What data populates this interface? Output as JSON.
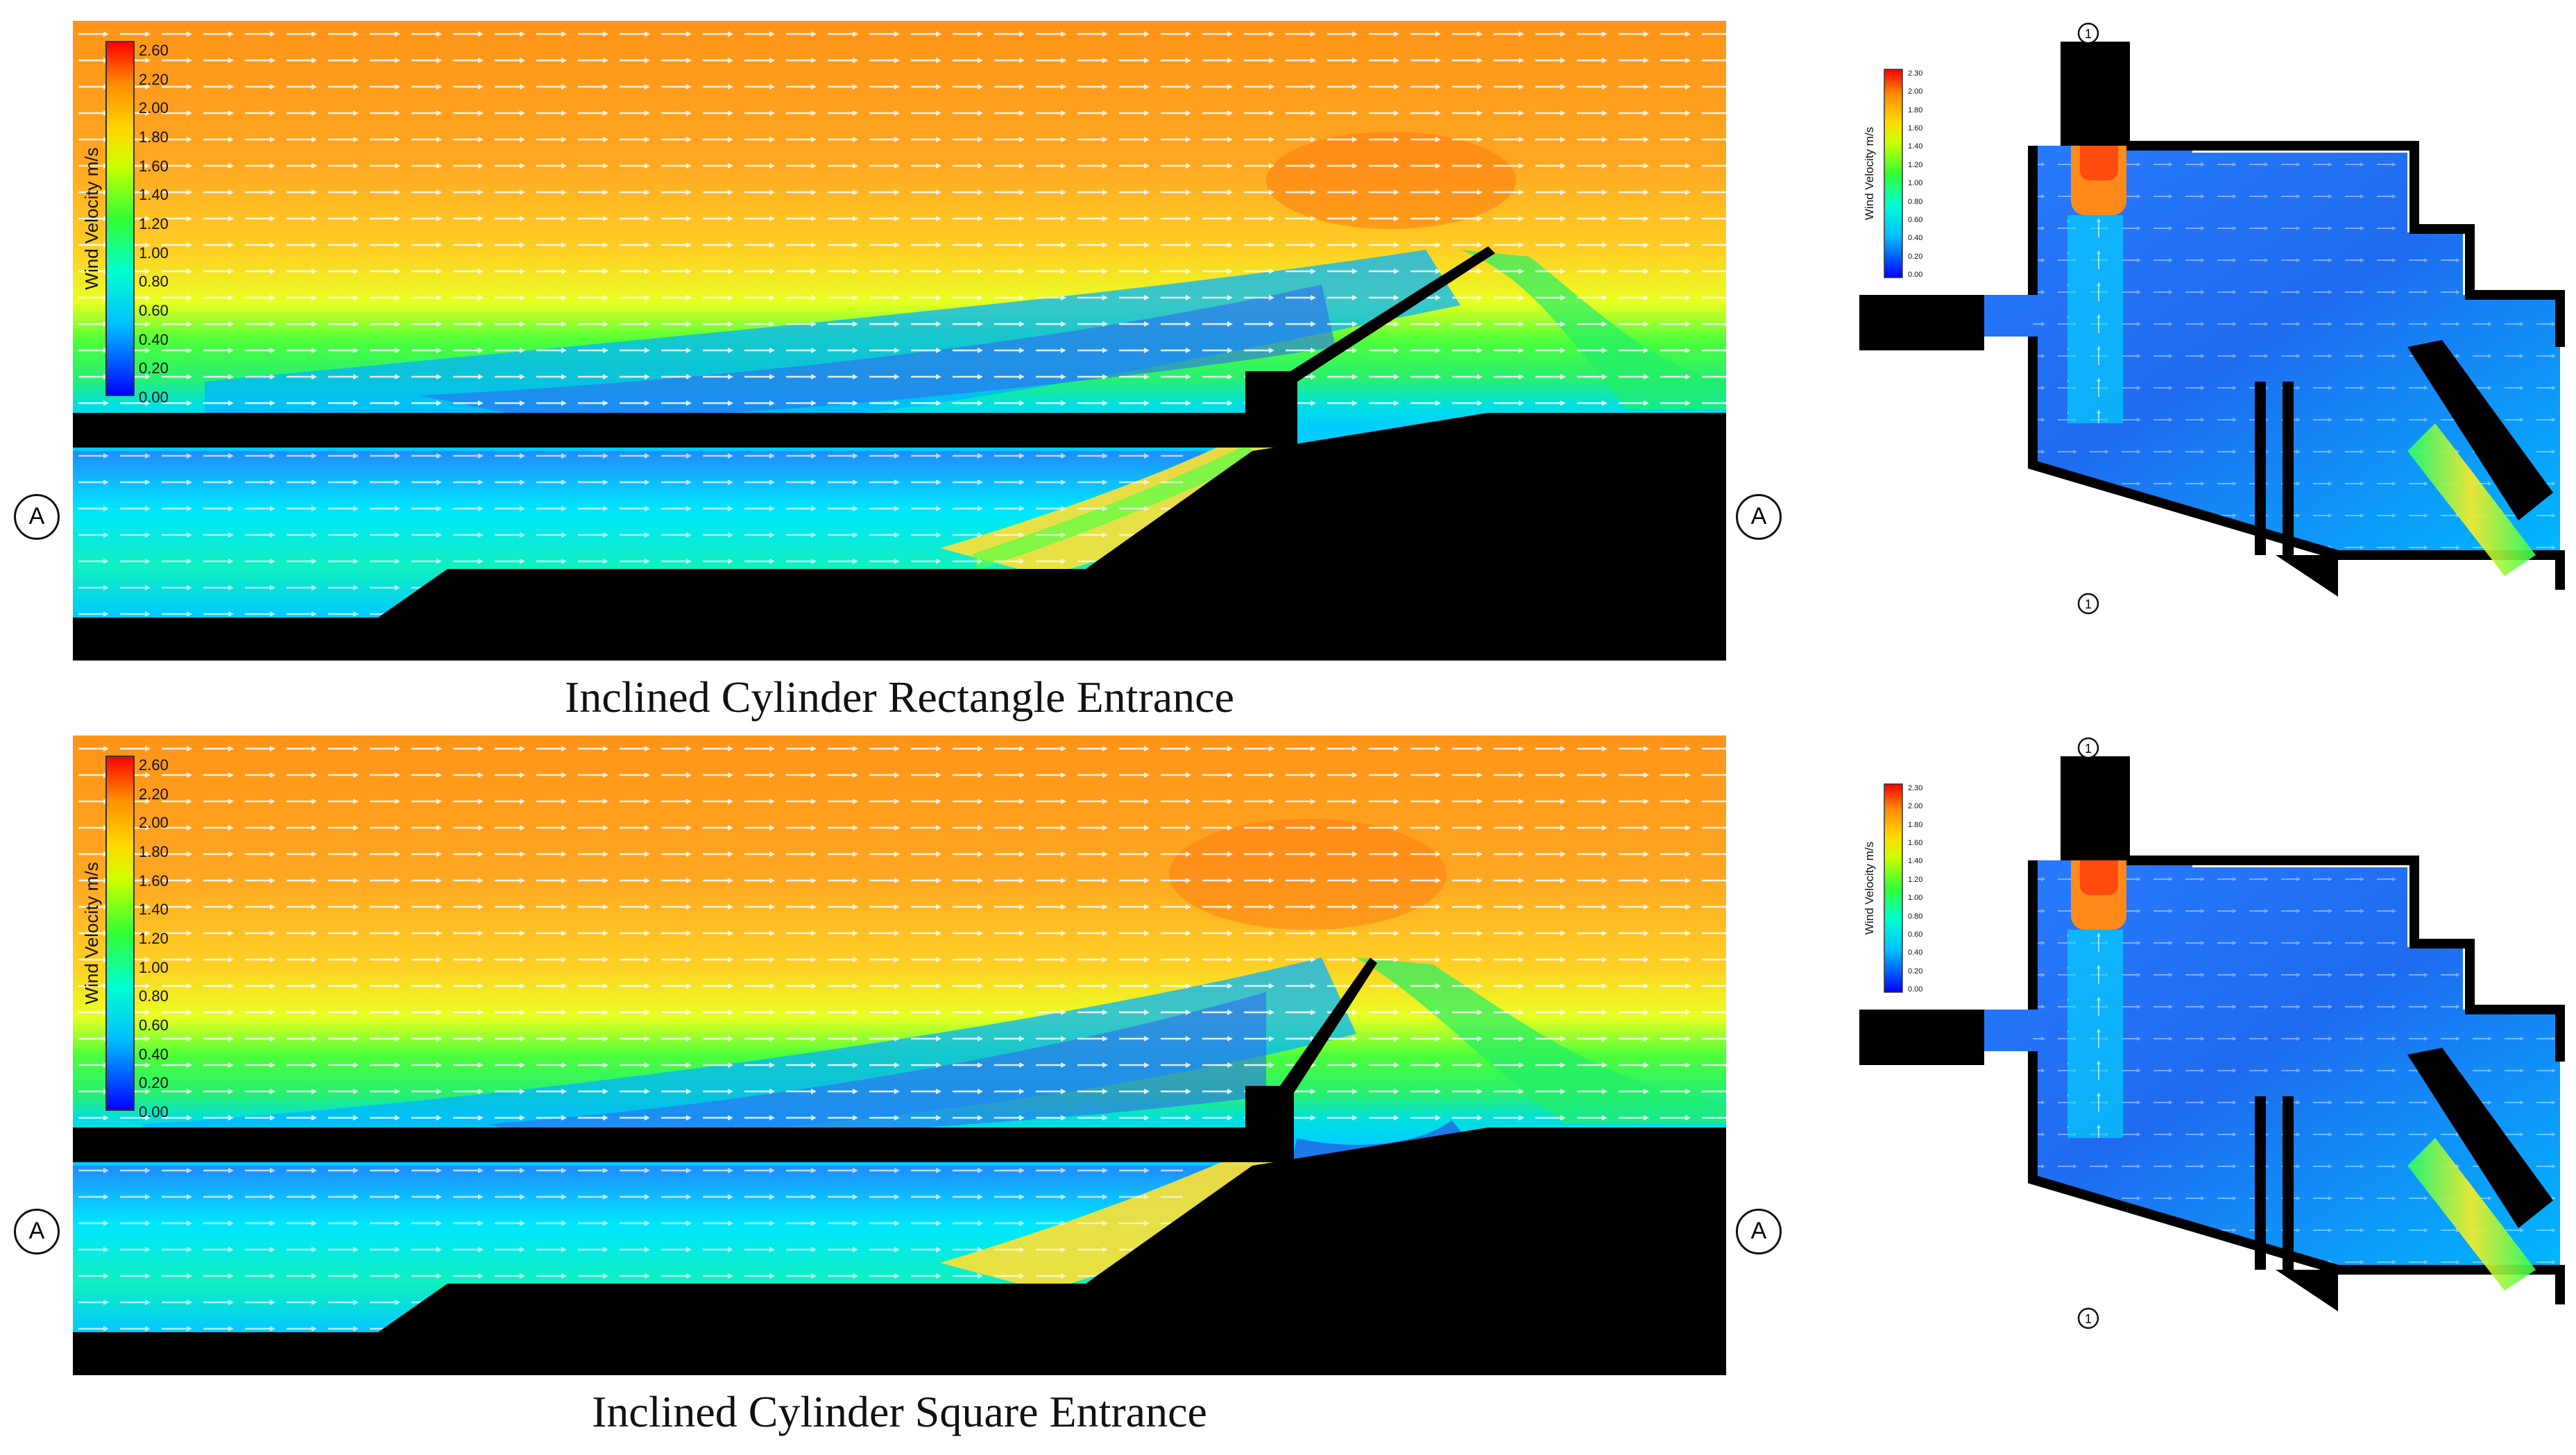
{
  "captions": {
    "top": "Inclined Cylinder Rectangle Entrance",
    "bottom": "Inclined Cylinder Square Entrance"
  },
  "section_legend": {
    "title": "Wind Velocity m/s",
    "ticks": [
      "2.60",
      "2.20",
      "2.00",
      "1.80",
      "1.60",
      "1.40",
      "1.20",
      "1.00",
      "0.80",
      "0.60",
      "0.40",
      "0.20",
      "0.00"
    ]
  },
  "plan_legend": {
    "title": "Wind Velocity m/s",
    "ticks": [
      "2.30",
      "2.00",
      "1.80",
      "1.60",
      "1.40",
      "1.20",
      "1.00",
      "0.80",
      "0.60",
      "0.40",
      "0.20",
      "0.00"
    ]
  },
  "markers": {
    "section_cut": "A",
    "plan_cut": "1"
  },
  "colors": {
    "scale": [
      "#0000ff",
      "#00b4ff",
      "#00ffff",
      "#00ff66",
      "#66ff00",
      "#ffff00",
      "#ffb000",
      "#ff7700",
      "#ff0000"
    ],
    "background_high": "#ff9a1a",
    "solid": "#000000"
  }
}
